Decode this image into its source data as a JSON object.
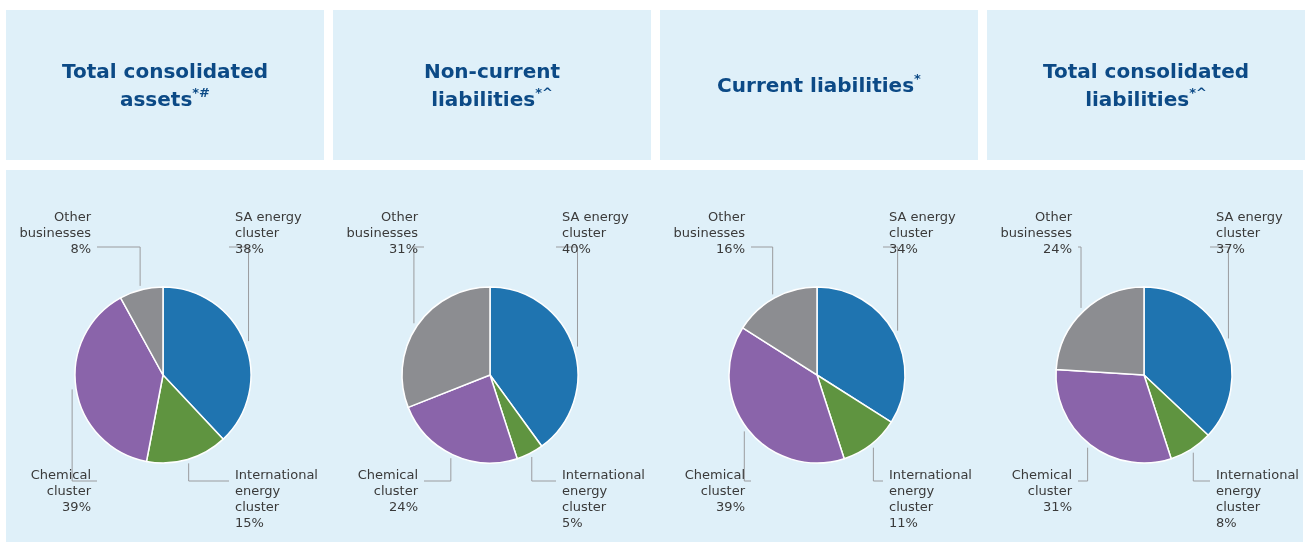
{
  "chart_data": [
    {
      "type": "pie",
      "title": "Total consolidated assets$^{*#}$",
      "categories": [
        "SA energy cluster",
        "International energy cluster",
        "Chemical cluster",
        "Other businesses"
      ],
      "values": [
        38,
        15,
        39,
        8
      ],
      "colors": [
        "#1f74b0",
        "#5f9440",
        "#8a64aa",
        "#8c8d91"
      ],
      "value_labels": [
        "38%",
        "15%",
        "39%",
        "8%"
      ]
    },
    {
      "type": "pie",
      "title": "Non-current liabilities$^{*^}$",
      "categories": [
        "SA energy cluster",
        "International energy cluster",
        "Chemical cluster",
        "Other businesses"
      ],
      "values": [
        40,
        5,
        24,
        31
      ],
      "colors": [
        "#1f74b0",
        "#5f9440",
        "#8a64aa",
        "#8c8d91"
      ],
      "value_labels": [
        "40%",
        "5%",
        "24%",
        "31%"
      ]
    },
    {
      "type": "pie",
      "title": "Current liabilities$^{*}$",
      "categories": [
        "SA energy cluster",
        "International energy cluster",
        "Chemical cluster",
        "Other businesses"
      ],
      "values": [
        34,
        11,
        39,
        16
      ],
      "colors": [
        "#1f74b0",
        "#5f9440",
        "#8a64aa",
        "#8c8d91"
      ],
      "value_labels": [
        "34%",
        "11%",
        "39%",
        "16%"
      ]
    },
    {
      "type": "pie",
      "title": "Total consolidated liabilities$^{*^}$",
      "categories": [
        "SA energy cluster",
        "International energy cluster",
        "Chemical cluster",
        "Other businesses"
      ],
      "values": [
        37,
        8,
        31,
        24
      ],
      "colors": [
        "#1f74b0",
        "#5f9440",
        "#8a64aa",
        "#8c8d91"
      ],
      "value_labels": [
        "37%",
        "8%",
        "31%",
        "24%"
      ]
    }
  ]
}
